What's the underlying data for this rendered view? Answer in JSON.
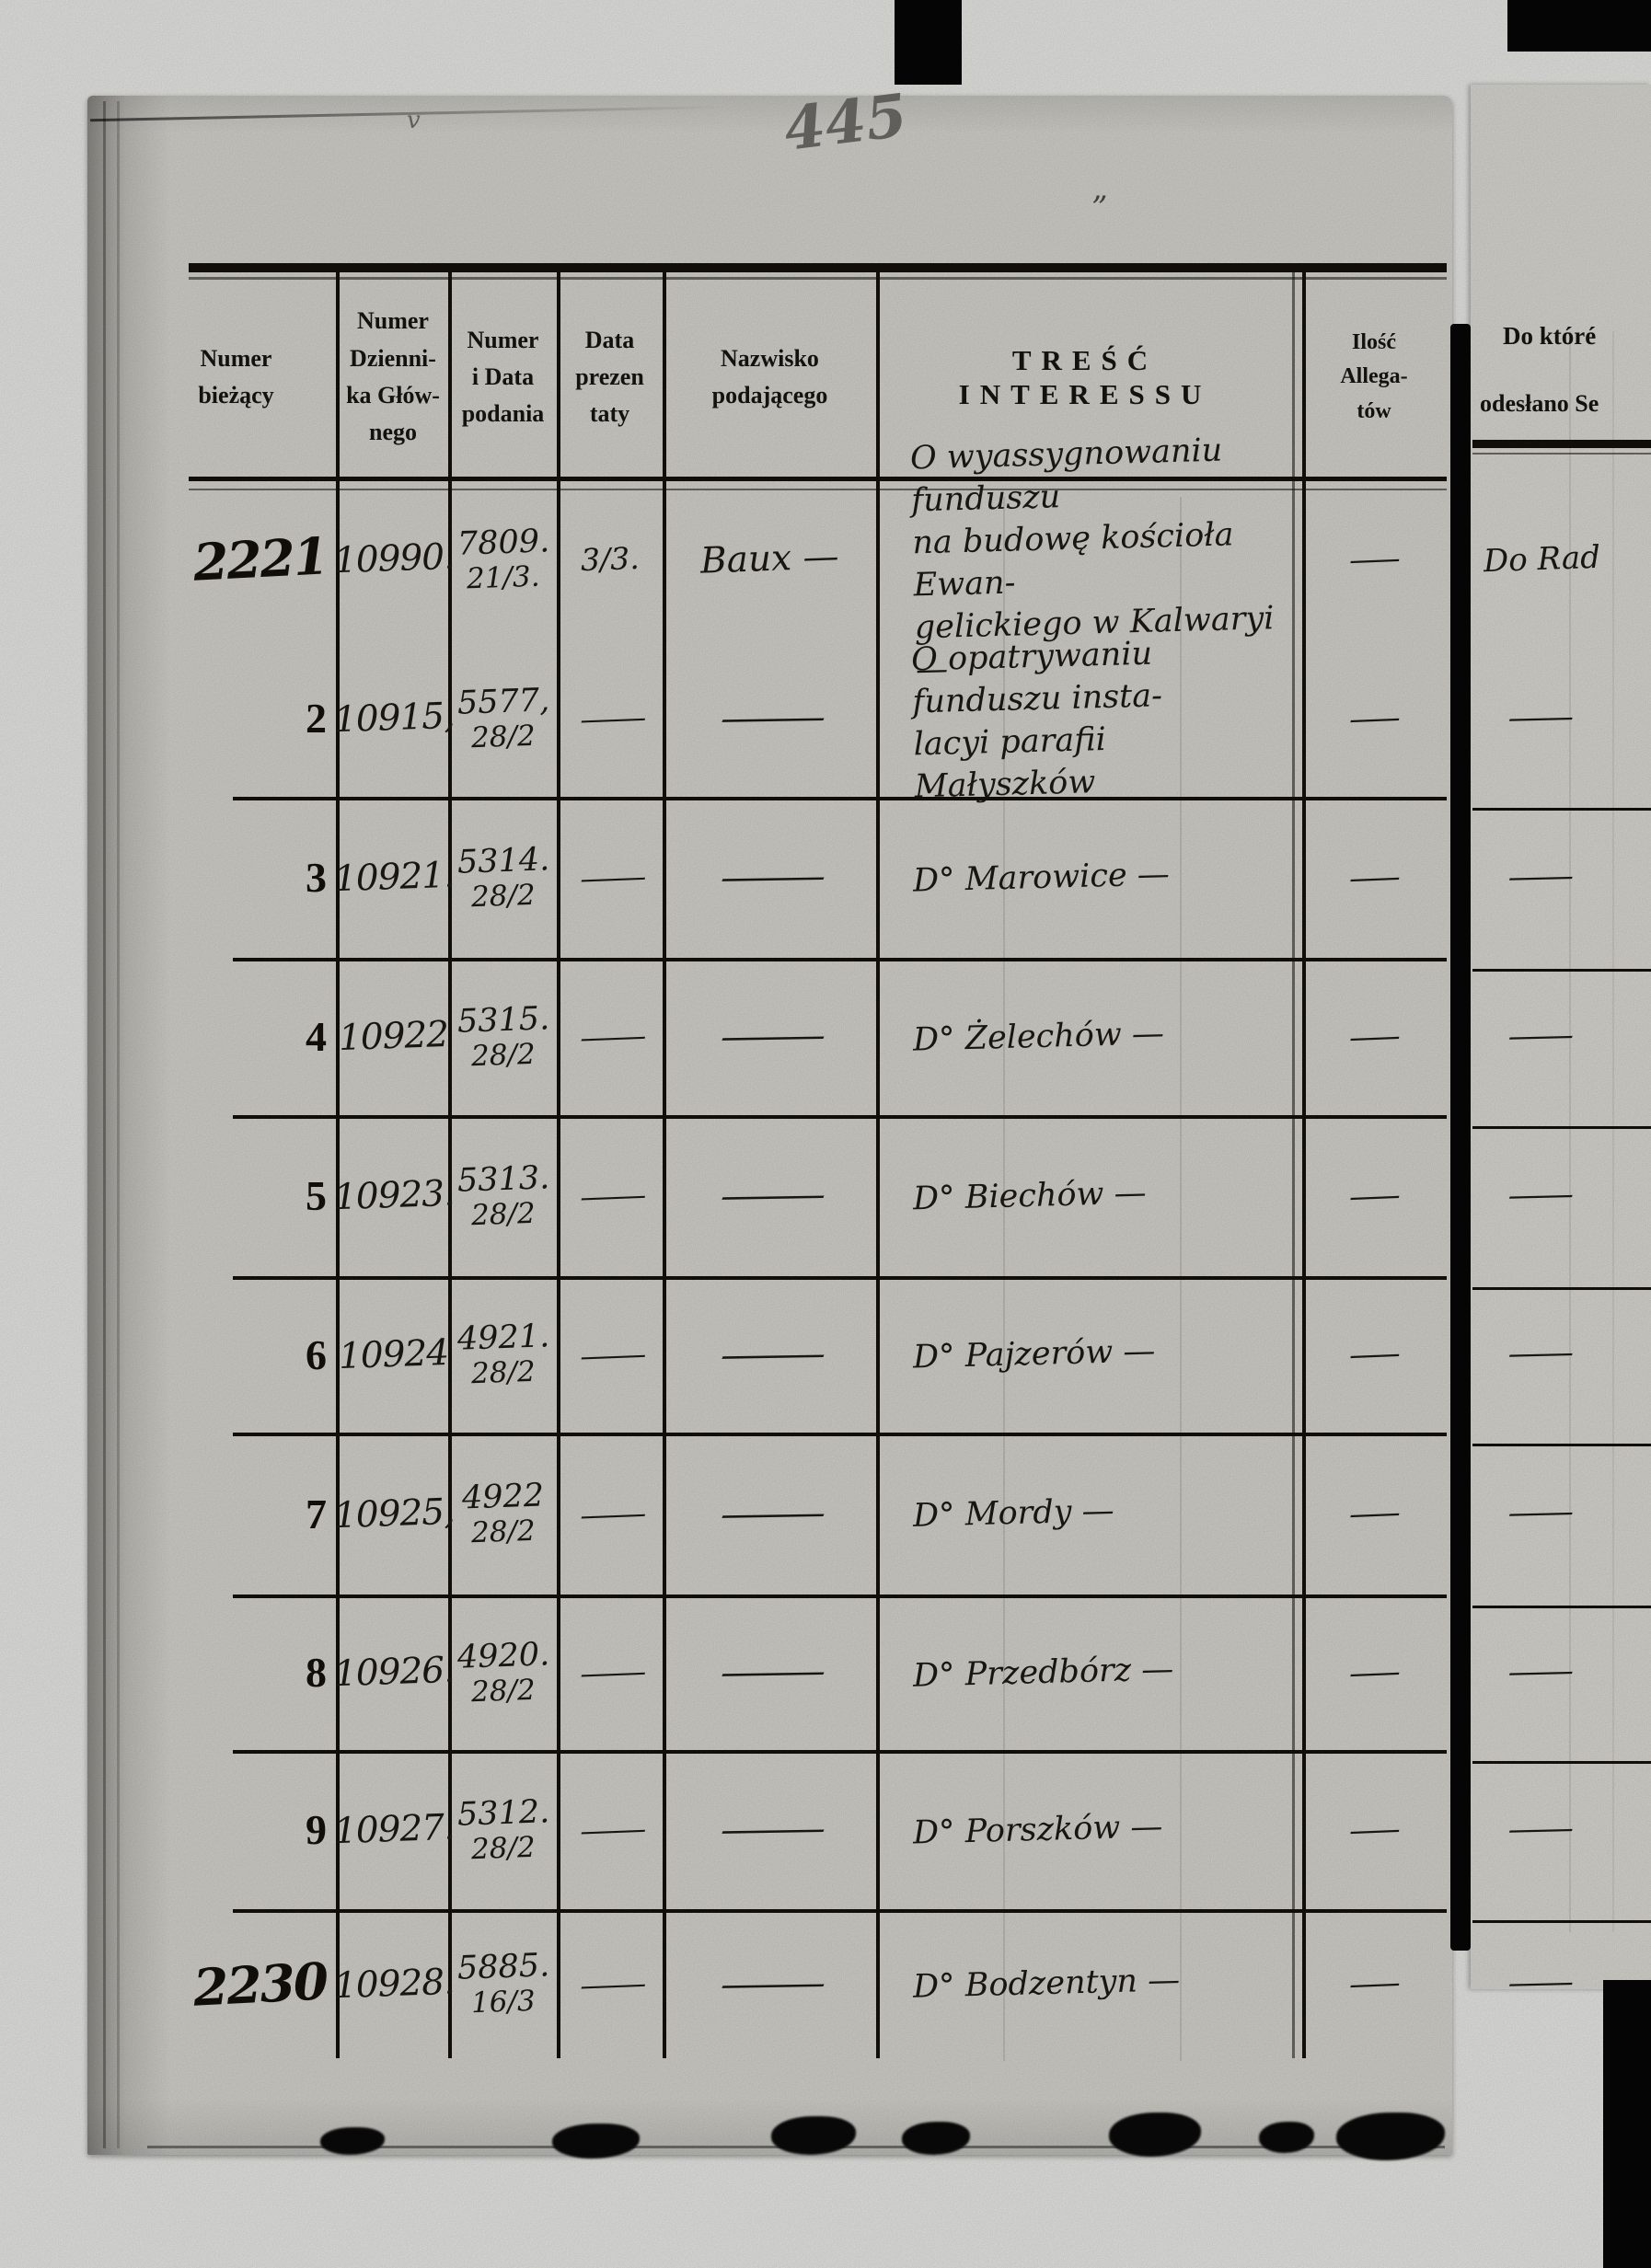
{
  "colors": {
    "paper_left": "#d8d7d1",
    "paper_right": "#dddcd6",
    "background": "#ecece9",
    "ink": "#14110c",
    "handwriting": "#1d1a15",
    "pencil": "#6f6e6a"
  },
  "pencil_notes": {
    "page_number": "445",
    "tick": "v",
    "quote_mark": "”"
  },
  "left_page": {
    "headers": {
      "numer_biezacy": "Numer\nbieżący",
      "numer_dziennika": "Numer\nDzienni-\nka Głów-\nnego",
      "numer_i_data": "Numer\ni Data\npodania",
      "data_prezentaty": "Data\nprezen\ntaty",
      "nazwisko": "Nazwisko\npodającego",
      "tresc": "TREŚĆ INTERESSU",
      "ilosc": "Ilość\nAllega-\ntów"
    },
    "rows": [
      {
        "no": "2221",
        "dziennik": "10990.",
        "podanie_nr": "7809.",
        "podanie_data": "21/3.",
        "prezentata": "3/3.",
        "nazwisko": "Baux —",
        "tresc": [
          "O wyassygnowaniu funduszu",
          "na budowę kościoła Ewan-",
          "gelickiego w Kalwaryi —"
        ],
        "allegata": "—",
        "odeslano": "Do Rad"
      },
      {
        "no": "2",
        "dziennik": "10915,",
        "podanie_nr": "5577,",
        "podanie_data": "28/2",
        "prezentata": "—",
        "nazwisko": "—",
        "tresc": [
          "O opatrywaniu funduszu insta-",
          "lacyi parafii Małyszków"
        ],
        "allegata": "—",
        "odeslano": "—"
      },
      {
        "no": "3",
        "dziennik": "10921.",
        "podanie_nr": "5314.",
        "podanie_data": "28/2",
        "prezentata": "—",
        "nazwisko": "—",
        "tresc": [
          "D° Marowice —"
        ],
        "allegata": "—",
        "odeslano": "—"
      },
      {
        "no": "4",
        "dziennik": "10922",
        "podanie_nr": "5315.",
        "podanie_data": "28/2",
        "prezentata": "—",
        "nazwisko": "—",
        "tresc": [
          "D° Żelechów —"
        ],
        "allegata": "—",
        "odeslano": "—"
      },
      {
        "no": "5",
        "dziennik": "10923.",
        "podanie_nr": "5313.",
        "podanie_data": "28/2",
        "prezentata": "—",
        "nazwisko": "—",
        "tresc": [
          "D° Biechów —"
        ],
        "allegata": "—",
        "odeslano": "—"
      },
      {
        "no": "6",
        "dziennik": "10924",
        "podanie_nr": "4921.",
        "podanie_data": "28/2",
        "prezentata": "—",
        "nazwisko": "—",
        "tresc": [
          "D° Pajzerów —"
        ],
        "allegata": "—",
        "odeslano": "—"
      },
      {
        "no": "7",
        "dziennik": "10925,",
        "podanie_nr": "4922",
        "podanie_data": "28/2",
        "prezentata": "—",
        "nazwisko": "—",
        "tresc": [
          "D° Mordy —"
        ],
        "allegata": "—",
        "odeslano": "—"
      },
      {
        "no": "8",
        "dziennik": "10926.",
        "podanie_nr": "4920.",
        "podanie_data": "28/2",
        "prezentata": "—",
        "nazwisko": "—",
        "tresc": [
          "D° Przedbórz —"
        ],
        "allegata": "—",
        "odeslano": "—"
      },
      {
        "no": "9",
        "dziennik": "10927.",
        "podanie_nr": "5312.",
        "podanie_data": "28/2",
        "prezentata": "—",
        "nazwisko": "—",
        "tresc": [
          "D° Porszków —"
        ],
        "allegata": "—",
        "odeslano": "—"
      },
      {
        "no": "2230",
        "dziennik": "10928.",
        "podanie_nr": "5885.",
        "podanie_data": "16/3",
        "prezentata": "—",
        "nazwisko": "—",
        "tresc": [
          "D° Bodzentyn —"
        ],
        "allegata": "—",
        "odeslano": "—"
      }
    ]
  },
  "right_page": {
    "header_line1": "Do któré",
    "header_line2": "odesłano Se"
  }
}
